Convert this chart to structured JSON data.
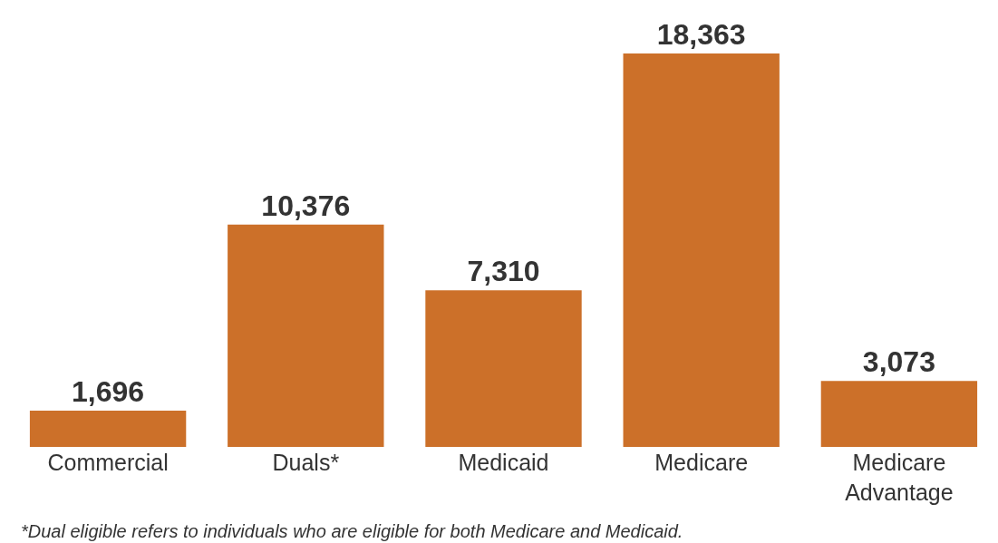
{
  "chart_data": {
    "type": "bar",
    "categories": [
      "Commercial",
      "Duals*",
      "Medicaid",
      "Medicare",
      "Medicare Advantage"
    ],
    "values": [
      1696,
      10376,
      7310,
      18363,
      3073
    ],
    "value_labels": [
      "1,696",
      "10,376",
      "7,310",
      "18,363",
      "3,073"
    ],
    "color": "#cc7029",
    "annotations": [
      "*Dual eligible refers to individuals who are eligible for both Medicare and Medicaid."
    ]
  }
}
